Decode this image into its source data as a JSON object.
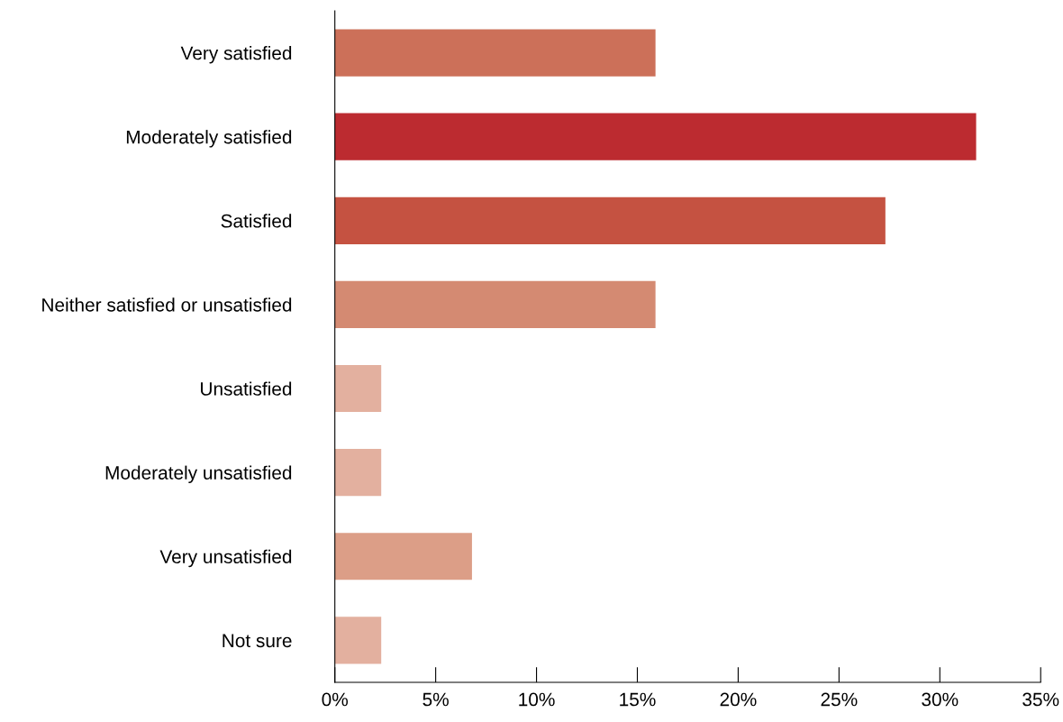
{
  "chart_data": {
    "type": "bar",
    "orientation": "horizontal",
    "categories": [
      "Very satisfied",
      "Moderately satisfied",
      "Satisfied",
      "Neither satisfied or unsatisfied",
      "Unsatisfied",
      "Moderately unsatisfied",
      "Very unsatisfied",
      "Not sure"
    ],
    "values": [
      15.9,
      31.8,
      27.3,
      15.9,
      2.3,
      2.3,
      6.8,
      2.3
    ],
    "colors": [
      "#cc7059",
      "#bc2b30",
      "#c55241",
      "#d48a72",
      "#e3b09f",
      "#e3b09f",
      "#dc9e87",
      "#e3b09f"
    ],
    "xlim": [
      0,
      35
    ],
    "xticks": [
      {
        "value": 0,
        "label": "0%"
      },
      {
        "value": 5,
        "label": "5%"
      },
      {
        "value": 10,
        "label": "10%"
      },
      {
        "value": 15,
        "label": "15%"
      },
      {
        "value": 20,
        "label": "20%"
      },
      {
        "value": 25,
        "label": "25%"
      },
      {
        "value": 30,
        "label": "30%"
      },
      {
        "value": 35,
        "label": "35%"
      }
    ],
    "grid": false,
    "legend": false
  }
}
